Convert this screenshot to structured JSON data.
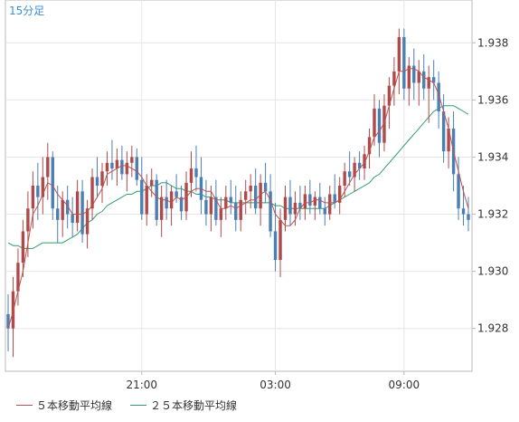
{
  "chart_data": {
    "type": "line",
    "title": "15分足",
    "x_tick_labels": [
      "21:00",
      "03:00",
      "09:00"
    ],
    "ylim": [
      1.9265,
      1.9395
    ],
    "y_ticks": [
      "1.928",
      "1.930",
      "1.932",
      "1.934",
      "1.936",
      "1.938"
    ],
    "grid": true,
    "candles": {
      "up_color": "#b04a4a",
      "down_color": "#4a7fb5",
      "ohlc": [
        [
          1.9285,
          1.9292,
          1.9272,
          1.928
        ],
        [
          1.928,
          1.9298,
          1.927,
          1.9293
        ],
        [
          1.9293,
          1.9308,
          1.9288,
          1.9303
        ],
        [
          1.9303,
          1.9318,
          1.9298,
          1.9314
        ],
        [
          1.9314,
          1.9328,
          1.9305,
          1.9322
        ],
        [
          1.9322,
          1.9335,
          1.9315,
          1.933
        ],
        [
          1.933,
          1.9338,
          1.9318,
          1.9326
        ],
        [
          1.9326,
          1.934,
          1.932,
          1.9333
        ],
        [
          1.9333,
          1.9345,
          1.9325,
          1.934
        ],
        [
          1.934,
          1.9342,
          1.9318,
          1.9322
        ],
        [
          1.9322,
          1.933,
          1.931,
          1.9318
        ],
        [
          1.9318,
          1.9328,
          1.9312,
          1.9325
        ],
        [
          1.9325,
          1.933,
          1.9315,
          1.932
        ],
        [
          1.932,
          1.9326,
          1.9312,
          1.9317
        ],
        [
          1.9317,
          1.9332,
          1.9314,
          1.9328
        ],
        [
          1.9328,
          1.9332,
          1.931,
          1.9313
        ],
        [
          1.9313,
          1.9325,
          1.9308,
          1.9322
        ],
        [
          1.9322,
          1.9336,
          1.9318,
          1.9333
        ],
        [
          1.9333,
          1.934,
          1.9326,
          1.933
        ],
        [
          1.933,
          1.9338,
          1.9324,
          1.9335
        ],
        [
          1.9335,
          1.9342,
          1.933,
          1.9338
        ],
        [
          1.9338,
          1.9346,
          1.9332,
          1.9336
        ],
        [
          1.9336,
          1.9343,
          1.933,
          1.9339
        ],
        [
          1.9339,
          1.9344,
          1.9332,
          1.9334
        ],
        [
          1.9334,
          1.9342,
          1.9328,
          1.9338
        ],
        [
          1.9338,
          1.9344,
          1.9333,
          1.934
        ],
        [
          1.934,
          1.9343,
          1.933,
          1.9332
        ],
        [
          1.9332,
          1.934,
          1.9318,
          1.932
        ],
        [
          1.932,
          1.9334,
          1.9316,
          1.933
        ],
        [
          1.933,
          1.9336,
          1.9326,
          1.9332
        ],
        [
          1.9332,
          1.9334,
          1.9316,
          1.9318
        ],
        [
          1.9318,
          1.933,
          1.9312,
          1.9326
        ],
        [
          1.9326,
          1.9332,
          1.9318,
          1.9322
        ],
        [
          1.9322,
          1.933,
          1.9316,
          1.9328
        ],
        [
          1.9328,
          1.9334,
          1.9324,
          1.9326
        ],
        [
          1.9326,
          1.933,
          1.9318,
          1.9321
        ],
        [
          1.9321,
          1.9335,
          1.9318,
          1.9331
        ],
        [
          1.9331,
          1.9342,
          1.9326,
          1.9336
        ],
        [
          1.9336,
          1.9344,
          1.9328,
          1.9333
        ],
        [
          1.9333,
          1.934,
          1.932,
          1.9325
        ],
        [
          1.9325,
          1.9332,
          1.9316,
          1.932
        ],
        [
          1.932,
          1.933,
          1.9314,
          1.9326
        ],
        [
          1.9326,
          1.9332,
          1.9316,
          1.9318
        ],
        [
          1.9318,
          1.9326,
          1.9312,
          1.9322
        ],
        [
          1.9322,
          1.933,
          1.9318,
          1.9326
        ],
        [
          1.9326,
          1.9332,
          1.932,
          1.9324
        ],
        [
          1.9324,
          1.933,
          1.9314,
          1.9318
        ],
        [
          1.9318,
          1.9328,
          1.9314,
          1.9325
        ],
        [
          1.9325,
          1.9332,
          1.932,
          1.9328
        ],
        [
          1.9328,
          1.9334,
          1.9322,
          1.933
        ],
        [
          1.933,
          1.9336,
          1.932,
          1.9322
        ],
        [
          1.9322,
          1.9334,
          1.9316,
          1.9331
        ],
        [
          1.9331,
          1.9338,
          1.9324,
          1.9328
        ],
        [
          1.9328,
          1.9334,
          1.9312,
          1.9314
        ],
        [
          1.9314,
          1.9324,
          1.93,
          1.9304
        ],
        [
          1.9304,
          1.9322,
          1.9298,
          1.9318
        ],
        [
          1.9318,
          1.933,
          1.9314,
          1.9326
        ],
        [
          1.9326,
          1.9332,
          1.9316,
          1.932
        ],
        [
          1.932,
          1.9328,
          1.9316,
          1.9324
        ],
        [
          1.9324,
          1.933,
          1.9318,
          1.9322
        ],
        [
          1.9322,
          1.933,
          1.9318,
          1.9327
        ],
        [
          1.9327,
          1.9332,
          1.932,
          1.9323
        ],
        [
          1.9323,
          1.9328,
          1.9318,
          1.9326
        ],
        [
          1.9326,
          1.9331,
          1.932,
          1.9322
        ],
        [
          1.9322,
          1.9326,
          1.9316,
          1.932
        ],
        [
          1.932,
          1.933,
          1.9318,
          1.9327
        ],
        [
          1.9327,
          1.9334,
          1.9322,
          1.9324
        ],
        [
          1.9324,
          1.9333,
          1.932,
          1.933
        ],
        [
          1.933,
          1.9338,
          1.9326,
          1.9335
        ],
        [
          1.9335,
          1.9342,
          1.933,
          1.9333
        ],
        [
          1.9333,
          1.934,
          1.9328,
          1.9338
        ],
        [
          1.9338,
          1.9342,
          1.9332,
          1.9336
        ],
        [
          1.9336,
          1.9344,
          1.9332,
          1.9341
        ],
        [
          1.9341,
          1.935,
          1.9336,
          1.9347
        ],
        [
          1.9347,
          1.9362,
          1.9344,
          1.9357
        ],
        [
          1.9357,
          1.936,
          1.934,
          1.9345
        ],
        [
          1.9345,
          1.9362,
          1.9342,
          1.9358
        ],
        [
          1.9358,
          1.9368,
          1.935,
          1.9365
        ],
        [
          1.9365,
          1.9375,
          1.9358,
          1.937
        ],
        [
          1.937,
          1.9385,
          1.9362,
          1.9382
        ],
        [
          1.9382,
          1.9385,
          1.936,
          1.9364
        ],
        [
          1.9364,
          1.9375,
          1.9358,
          1.9372
        ],
        [
          1.9372,
          1.9378,
          1.936,
          1.9366
        ],
        [
          1.9366,
          1.9374,
          1.9358,
          1.937
        ],
        [
          1.937,
          1.9376,
          1.936,
          1.9364
        ],
        [
          1.9364,
          1.9372,
          1.9352,
          1.9368
        ],
        [
          1.9368,
          1.9374,
          1.936,
          1.9366
        ],
        [
          1.9366,
          1.937,
          1.935,
          1.9356
        ],
        [
          1.9356,
          1.9362,
          1.9338,
          1.9342
        ],
        [
          1.9342,
          1.9354,
          1.9336,
          1.935
        ],
        [
          1.935,
          1.9356,
          1.9328,
          1.9334
        ],
        [
          1.9334,
          1.934,
          1.9318,
          1.9322
        ],
        [
          1.9322,
          1.933,
          1.9316,
          1.932
        ],
        [
          1.932,
          1.9326,
          1.9314,
          1.9318
        ]
      ]
    },
    "series": [
      {
        "name": "５本移動平均線",
        "color": "#c0504d",
        "values": [
          1.928,
          1.9286,
          1.9293,
          1.93,
          1.931,
          1.932,
          1.9323,
          1.9327,
          1.9331,
          1.933,
          1.9327,
          1.9325,
          1.9323,
          1.932,
          1.932,
          1.932,
          1.9321,
          1.9323,
          1.9326,
          1.9329,
          1.9334,
          1.9335,
          1.9336,
          1.9337,
          1.9337,
          1.9336,
          1.9335,
          1.9333,
          1.933,
          1.9328,
          1.9326,
          1.9325,
          1.9325,
          1.9324,
          1.9326,
          1.9325,
          1.9326,
          1.9328,
          1.9329,
          1.9329,
          1.9328,
          1.9328,
          1.9325,
          1.9322,
          1.9322,
          1.9323,
          1.9322,
          1.9323,
          1.9324,
          1.9325,
          1.9325,
          1.9327,
          1.9328,
          1.9325,
          1.932,
          1.9318,
          1.9316,
          1.9316,
          1.9318,
          1.9322,
          1.9324,
          1.9324,
          1.9325,
          1.9325,
          1.9324,
          1.9324,
          1.9324,
          1.9325,
          1.9328,
          1.9331,
          1.9334,
          1.9336,
          1.9338,
          1.9342,
          1.9347,
          1.9349,
          1.9352,
          1.9358,
          1.9364,
          1.937,
          1.937,
          1.9371,
          1.9371,
          1.937,
          1.9368,
          1.9367,
          1.9366,
          1.9362,
          1.9356,
          1.935,
          1.9342,
          1.9335,
          1.9328,
          1.9322
        ]
      },
      {
        "name": "２５本移動平均線",
        "color": "#2e9e6b",
        "values": [
          1.931,
          1.9309,
          1.9309,
          1.9308,
          1.9308,
          1.9308,
          1.9309,
          1.931,
          1.931,
          1.931,
          1.931,
          1.931,
          1.9311,
          1.9312,
          1.9313,
          1.9315,
          1.9317,
          1.9318,
          1.932,
          1.9321,
          1.9323,
          1.9324,
          1.9325,
          1.9326,
          1.9327,
          1.9327,
          1.9328,
          1.9328,
          1.9329,
          1.933,
          1.933,
          1.9331,
          1.9331,
          1.933,
          1.9329,
          1.9329,
          1.9328,
          1.9328,
          1.9327,
          1.9327,
          1.9326,
          1.9326,
          1.9325,
          1.9325,
          1.9325,
          1.9324,
          1.9324,
          1.9324,
          1.9324,
          1.9324,
          1.9324,
          1.9324,
          1.9324,
          1.9324,
          1.9323,
          1.9323,
          1.9322,
          1.9322,
          1.9322,
          1.9322,
          1.9322,
          1.9322,
          1.9322,
          1.9322,
          1.9322,
          1.9323,
          1.9324,
          1.9325,
          1.9326,
          1.9327,
          1.9328,
          1.9329,
          1.933,
          1.9331,
          1.9333,
          1.9334,
          1.9336,
          1.9338,
          1.934,
          1.9342,
          1.9344,
          1.9346,
          1.9348,
          1.935,
          1.9352,
          1.9354,
          1.9356,
          1.9357,
          1.9358,
          1.9358,
          1.9358,
          1.9357,
          1.9356,
          1.9355
        ]
      }
    ]
  }
}
